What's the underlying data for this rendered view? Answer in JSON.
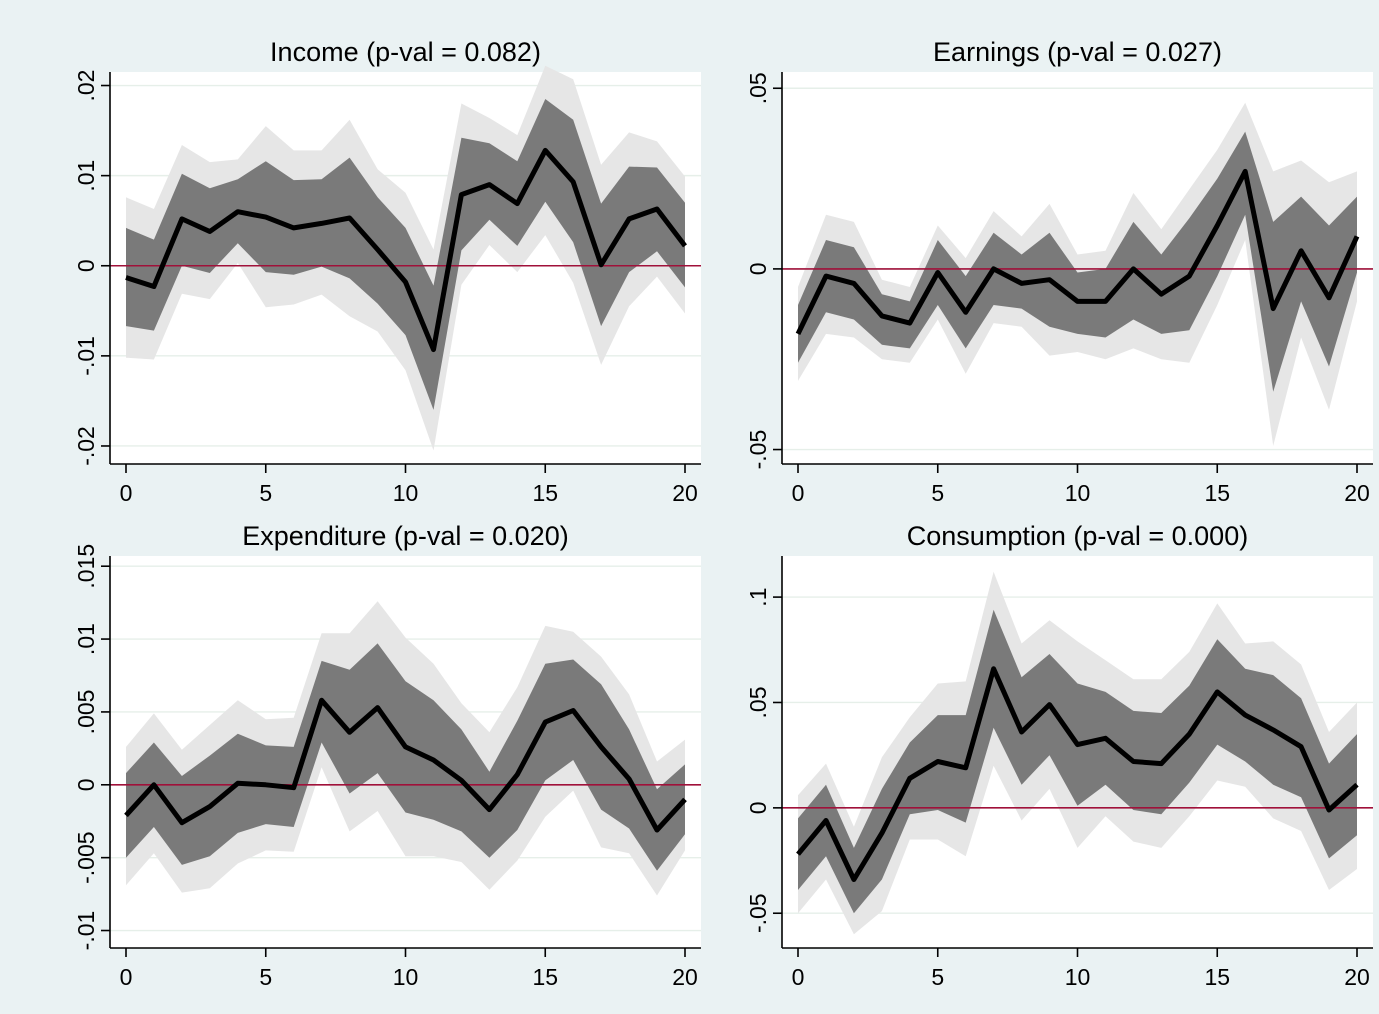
{
  "figure": {
    "background": "#eaf2f3",
    "colors": {
      "outer_band": "#e6e6e6",
      "inner_band": "#7a7a7a",
      "line": "#000000",
      "zero_line": "#a0113a",
      "plot_background": "#ffffff"
    }
  },
  "chart_data": [
    {
      "type": "area",
      "title": "Income (p-val = 0.082)",
      "xlabel": "",
      "ylabel": "",
      "xlim": [
        0,
        20
      ],
      "ylim": [
        -0.022,
        0.0215
      ],
      "x_ticks": [
        0,
        5,
        10,
        15,
        20
      ],
      "x_tick_labels": [
        "0",
        "5",
        "10",
        "15",
        "20"
      ],
      "y_ticks": [
        -0.02,
        -0.01,
        0,
        0.01,
        0.02
      ],
      "y_tick_labels": [
        "-.02",
        "-.01",
        "0",
        ".01",
        ".02"
      ],
      "grid": true,
      "zero_line": true,
      "x": [
        0,
        1,
        2,
        3,
        4,
        5,
        6,
        7,
        8,
        9,
        10,
        11,
        12,
        13,
        14,
        15,
        16,
        17,
        18,
        19,
        20
      ],
      "series": [
        {
          "role": "point_estimate",
          "values": [
            -0.0013,
            -0.0023,
            0.0052,
            0.0038,
            0.006,
            0.0054,
            0.0042,
            0.0047,
            0.0053,
            0.0018,
            -0.0018,
            -0.0093,
            0.0079,
            0.009,
            0.0069,
            0.0128,
            0.0093,
            0.0001,
            0.0052,
            0.0063,
            0.0022
          ]
        },
        {
          "role": "inner_band_upper",
          "values": [
            0.0042,
            0.0029,
            0.0102,
            0.0086,
            0.0096,
            0.0116,
            0.0095,
            0.0096,
            0.012,
            0.0076,
            0.0042,
            -0.0022,
            0.0142,
            0.0136,
            0.0116,
            0.0185,
            0.0162,
            0.0069,
            0.011,
            0.0109,
            0.007
          ]
        },
        {
          "role": "inner_band_lower",
          "values": [
            -0.0067,
            -0.0072,
            0,
            -0.0008,
            0.0025,
            -0.0007,
            -0.001,
            -0.0001,
            -0.0014,
            -0.0042,
            -0.0077,
            -0.016,
            0.0017,
            0.0051,
            0.0022,
            0.0071,
            0.0026,
            -0.0067,
            -0.0007,
            0.0016,
            -0.0024
          ]
        },
        {
          "role": "outer_band_upper",
          "values": [
            0.0076,
            0.0063,
            0.0134,
            0.0115,
            0.0118,
            0.0155,
            0.0128,
            0.0128,
            0.0162,
            0.0107,
            0.0081,
            0.0018,
            0.018,
            0.0164,
            0.0145,
            0.0222,
            0.0207,
            0.0112,
            0.0148,
            0.0138,
            0.0099
          ]
        },
        {
          "role": "outer_band_lower",
          "values": [
            -0.0102,
            -0.0104,
            -0.0031,
            -0.0037,
            0.0003,
            -0.0046,
            -0.0043,
            -0.0032,
            -0.0056,
            -0.0073,
            -0.0116,
            -0.0205,
            -0.0021,
            0.0023,
            -0.0007,
            0.0034,
            -0.0019,
            -0.011,
            -0.0045,
            -0.0012,
            -0.0053
          ]
        }
      ]
    },
    {
      "type": "area",
      "title": "Earnings (p-val = 0.027)",
      "xlabel": "",
      "ylabel": "",
      "xlim": [
        0,
        20
      ],
      "ylim": [
        -0.054,
        0.0545
      ],
      "x_ticks": [
        0,
        5,
        10,
        15,
        20
      ],
      "x_tick_labels": [
        "0",
        "5",
        "10",
        "15",
        "20"
      ],
      "y_ticks": [
        -0.05,
        0,
        0.05
      ],
      "y_tick_labels": [
        "-.05",
        "0",
        ".05"
      ],
      "grid": true,
      "zero_line": true,
      "x": [
        0,
        1,
        2,
        3,
        4,
        5,
        6,
        7,
        8,
        9,
        10,
        11,
        12,
        13,
        14,
        15,
        16,
        17,
        18,
        19,
        20
      ],
      "series": [
        {
          "role": "point_estimate",
          "values": [
            -0.018,
            -0.002,
            -0.004,
            -0.013,
            -0.015,
            -0.001,
            -0.012,
            0,
            -0.004,
            -0.003,
            -0.009,
            -0.009,
            0,
            -0.007,
            -0.002,
            0.012,
            0.027,
            -0.011,
            0.005,
            -0.008,
            0.009
          ]
        },
        {
          "role": "inner_band_upper",
          "values": [
            -0.01,
            0.008,
            0.006,
            -0.007,
            -0.009,
            0.008,
            -0.002,
            0.01,
            0.004,
            0.01,
            -0.001,
            0,
            0.013,
            0.004,
            0.014,
            0.025,
            0.038,
            0.013,
            0.02,
            0.012,
            0.02
          ]
        },
        {
          "role": "inner_band_lower",
          "values": [
            -0.026,
            -0.012,
            -0.014,
            -0.021,
            -0.022,
            -0.01,
            -0.022,
            -0.01,
            -0.011,
            -0.016,
            -0.018,
            -0.019,
            -0.014,
            -0.018,
            -0.017,
            -0.002,
            0.015,
            -0.034,
            -0.009,
            -0.027,
            -0.001
          ]
        },
        {
          "role": "outer_band_upper",
          "values": [
            -0.005,
            0.015,
            0.013,
            -0.003,
            -0.005,
            0.012,
            0.003,
            0.016,
            0.009,
            0.018,
            0.004,
            0.005,
            0.021,
            0.011,
            0.022,
            0.033,
            0.046,
            0.027,
            0.03,
            0.024,
            0.027
          ]
        },
        {
          "role": "outer_band_lower",
          "values": [
            -0.031,
            -0.018,
            -0.019,
            -0.025,
            -0.026,
            -0.014,
            -0.029,
            -0.015,
            -0.016,
            -0.024,
            -0.023,
            -0.025,
            -0.022,
            -0.025,
            -0.026,
            -0.01,
            0.008,
            -0.049,
            -0.019,
            -0.039,
            -0.009
          ]
        }
      ]
    },
    {
      "type": "area",
      "title": "Expenditure (p-val = 0.020)",
      "xlabel": "",
      "ylabel": "",
      "xlim": [
        0,
        20
      ],
      "ylim": [
        -0.0112,
        0.0157
      ],
      "x_ticks": [
        0,
        5,
        10,
        15,
        20
      ],
      "x_tick_labels": [
        "0",
        "5",
        "10",
        "15",
        "20"
      ],
      "y_ticks": [
        -0.01,
        -0.005,
        0,
        0.005,
        0.01,
        0.015
      ],
      "y_tick_labels": [
        "-.01",
        "-.005",
        "0",
        ".005",
        ".01",
        ".015"
      ],
      "grid": true,
      "zero_line": true,
      "x": [
        0,
        1,
        2,
        3,
        4,
        5,
        6,
        7,
        8,
        9,
        10,
        11,
        12,
        13,
        14,
        15,
        16,
        17,
        18,
        19,
        20
      ],
      "series": [
        {
          "role": "point_estimate",
          "values": [
            -0.0021,
            0,
            -0.0026,
            -0.0015,
            0.0001,
            0,
            -0.0002,
            0.0058,
            0.0036,
            0.0053,
            0.0026,
            0.0017,
            0.0003,
            -0.0017,
            0.0007,
            0.0043,
            0.0051,
            0.0026,
            0.0004,
            -0.0031,
            -0.001
          ]
        },
        {
          "role": "inner_band_upper",
          "values": [
            0.0008,
            0.0029,
            0.0006,
            0.002,
            0.0035,
            0.0027,
            0.0026,
            0.0085,
            0.0079,
            0.0097,
            0.0071,
            0.0058,
            0.0038,
            0.0009,
            0.0044,
            0.0083,
            0.0086,
            0.0069,
            0.0038,
            -0.0003,
            0.0014
          ]
        },
        {
          "role": "inner_band_lower",
          "values": [
            -0.005,
            -0.0029,
            -0.0055,
            -0.0049,
            -0.0033,
            -0.0027,
            -0.0029,
            0.0029,
            -0.0006,
            0.0008,
            -0.0019,
            -0.0024,
            -0.0032,
            -0.005,
            -0.0031,
            0.0003,
            0.0017,
            -0.0017,
            -0.003,
            -0.0059,
            -0.0034
          ]
        },
        {
          "role": "outer_band_upper",
          "values": [
            0.0026,
            0.0049,
            0.0024,
            0.0041,
            0.0058,
            0.0045,
            0.0046,
            0.0104,
            0.0104,
            0.0126,
            0.0101,
            0.0083,
            0.0056,
            0.0036,
            0.0067,
            0.0109,
            0.0105,
            0.0088,
            0.0062,
            0.0016,
            0.0031
          ]
        },
        {
          "role": "outer_band_lower",
          "values": [
            -0.0069,
            -0.0047,
            -0.0074,
            -0.0071,
            -0.0054,
            -0.0045,
            -0.0046,
            0.0012,
            -0.0032,
            -0.0018,
            -0.0049,
            -0.0049,
            -0.0053,
            -0.0072,
            -0.0052,
            -0.0022,
            -0.0004,
            -0.0043,
            -0.0047,
            -0.0076,
            -0.0045
          ]
        }
      ]
    },
    {
      "type": "area",
      "title": "Consumption (p-val = 0.000)",
      "xlabel": "",
      "ylabel": "",
      "xlim": [
        0,
        20
      ],
      "ylim": [
        -0.0665,
        0.1195
      ],
      "x_ticks": [
        0,
        5,
        10,
        15,
        20
      ],
      "x_tick_labels": [
        "0",
        "5",
        "10",
        "15",
        "20"
      ],
      "y_ticks": [
        -0.05,
        0,
        0.05,
        0.1
      ],
      "y_tick_labels": [
        "-.05",
        "0",
        ".05",
        ".1"
      ],
      "grid": true,
      "zero_line": true,
      "x": [
        0,
        1,
        2,
        3,
        4,
        5,
        6,
        7,
        8,
        9,
        10,
        11,
        12,
        13,
        14,
        15,
        16,
        17,
        18,
        19,
        20
      ],
      "series": [
        {
          "role": "point_estimate",
          "values": [
            -0.022,
            -0.006,
            -0.034,
            -0.012,
            0.014,
            0.022,
            0.019,
            0.066,
            0.036,
            0.049,
            0.03,
            0.033,
            0.022,
            0.021,
            0.035,
            0.055,
            0.044,
            0.037,
            0.029,
            -0.001,
            0.011
          ]
        },
        {
          "role": "inner_band_upper",
          "values": [
            -0.005,
            0.011,
            -0.019,
            0.009,
            0.031,
            0.044,
            0.044,
            0.094,
            0.062,
            0.073,
            0.059,
            0.055,
            0.046,
            0.045,
            0.058,
            0.08,
            0.066,
            0.063,
            0.052,
            0.021,
            0.035
          ]
        },
        {
          "role": "inner_band_lower",
          "values": [
            -0.039,
            -0.023,
            -0.05,
            -0.034,
            -0.003,
            -0.001,
            -0.007,
            0.038,
            0.011,
            0.025,
            0.001,
            0.011,
            -0.001,
            -0.003,
            0.012,
            0.03,
            0.022,
            0.011,
            0.005,
            -0.024,
            -0.013
          ]
        },
        {
          "role": "outer_band_upper",
          "values": [
            0.006,
            0.021,
            -0.009,
            0.024,
            0.043,
            0.059,
            0.06,
            0.112,
            0.078,
            0.089,
            0.079,
            0.07,
            0.061,
            0.061,
            0.074,
            0.097,
            0.078,
            0.079,
            0.068,
            0.036,
            0.05
          ]
        },
        {
          "role": "outer_band_lower",
          "values": [
            -0.05,
            -0.034,
            -0.06,
            -0.049,
            -0.015,
            -0.015,
            -0.023,
            0.02,
            -0.006,
            0.009,
            -0.019,
            -0.004,
            -0.016,
            -0.019,
            -0.004,
            0.013,
            0.01,
            -0.005,
            -0.011,
            -0.039,
            -0.029
          ]
        }
      ]
    }
  ]
}
